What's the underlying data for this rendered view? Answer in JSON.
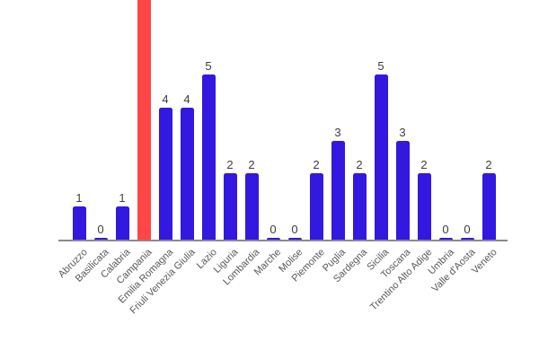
{
  "chart_data": {
    "type": "bar",
    "title": "",
    "xlabel": "",
    "ylabel": "",
    "legend": "none",
    "grid": false,
    "y_axis_visible": false,
    "background": "#ffffff",
    "bar_color": "#3318e0",
    "highlight": {
      "category": "Campania",
      "color": "#ff4545",
      "clipped_at_top": true
    },
    "axis_color": "#8a8a8a",
    "value_label_color": "#3d3d3d",
    "tick_label_color": "#58585b",
    "categories": [
      "Abruzzo",
      "Basilicata",
      "Calabria",
      "Campania",
      "Emilia Romagna",
      "Friuli Venezia Giulia",
      "Lazio",
      "Liguria",
      "Lombardia",
      "Marche",
      "Molise",
      "Piemonte",
      "Puglia",
      "Sardegna",
      "Sicilia",
      "Toscana",
      "Trentino Alto Adige",
      "Umbria",
      "Valle d'Aosta",
      "Veneto"
    ],
    "values": [
      1,
      0,
      1,
      null,
      4,
      4,
      5,
      2,
      2,
      0,
      0,
      2,
      3,
      2,
      5,
      3,
      2,
      0,
      0,
      2
    ],
    "value_labels": [
      "1",
      "0",
      "1",
      "",
      "4",
      "4",
      "5",
      "2",
      "2",
      "0",
      "0",
      "2",
      "3",
      "2",
      "5",
      "3",
      "2",
      "0",
      "0",
      "2"
    ]
  }
}
